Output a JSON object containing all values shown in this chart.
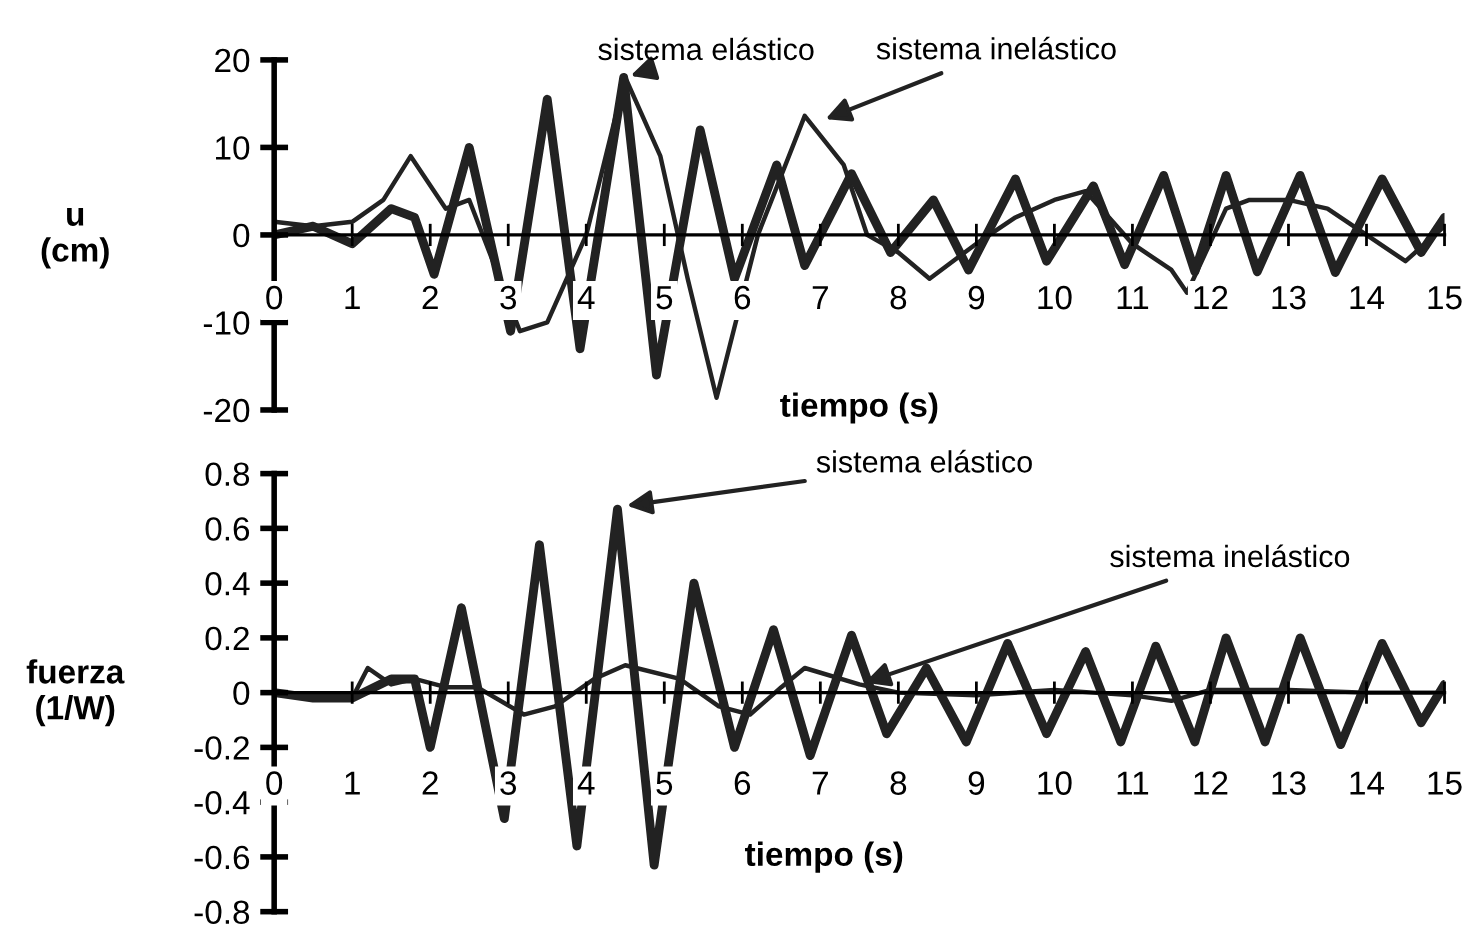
{
  "chart_data": [
    {
      "type": "line",
      "ylabel": "u\n(cm)",
      "xlabel": "tiempo (s)",
      "xlim": [
        0,
        15
      ],
      "xticks": [
        0,
        1,
        2,
        3,
        4,
        5,
        6,
        7,
        8,
        9,
        10,
        11,
        12,
        13,
        14,
        15
      ],
      "ylim": [
        -20,
        20
      ],
      "yticks": [
        -20,
        -10,
        0,
        10,
        20
      ],
      "grid": false,
      "legend": false,
      "marker": "none",
      "line_style": "solid",
      "annotations": [
        {
          "text": "sistema elástico",
          "x": 4.5,
          "y": 18
        },
        {
          "text": "sistema inelástico",
          "x": 7,
          "y": 13
        }
      ],
      "series": [
        {
          "color": "#222222",
          "x": [
            0,
            0.5,
            1,
            1.5,
            1.8,
            2.05,
            2.5,
            3.03,
            3.5,
            3.92,
            4.48,
            4.9,
            5.46,
            5.9,
            6.44,
            6.8,
            7.4,
            7.9,
            8.45,
            8.9,
            9.5,
            9.9,
            10.5,
            10.9,
            11.4,
            11.8,
            12.2,
            12.6,
            13.15,
            13.6,
            14.2,
            14.7,
            15
          ],
          "values": [
            0,
            1,
            -1,
            3,
            2,
            -4.5,
            10,
            -11,
            15.5,
            -13,
            18,
            -16,
            12,
            -5,
            8,
            -3.5,
            7,
            -2,
            4,
            -4,
            6.4,
            -3,
            5.6,
            -3.4,
            6.8,
            -4.2,
            6.8,
            -4.2,
            6.8,
            -4.3,
            6.4,
            -2,
            2
          ]
        },
        {
          "color": "#222222",
          "x": [
            0,
            0.5,
            1,
            1.4,
            1.75,
            2.2,
            2.5,
            3.15,
            3.5,
            4.0,
            4.5,
            4.7,
            4.95,
            5.3,
            5.67,
            6.2,
            6.8,
            7.3,
            7.6,
            8,
            8.4,
            9,
            9.5,
            10,
            10.4,
            11,
            11.5,
            11.7,
            12.2,
            12.5,
            13,
            13.5,
            14,
            14.5,
            15
          ],
          "values": [
            1.5,
            1,
            1.5,
            4,
            9,
            3,
            4,
            -11,
            -10,
            0,
            18,
            14,
            9,
            -5,
            -18.6,
            0,
            13.6,
            8,
            0,
            -2,
            -5,
            -1,
            2,
            4,
            5,
            -1,
            -4,
            -6.6,
            3,
            4,
            4,
            3,
            0,
            -3,
            1
          ]
        }
      ]
    },
    {
      "type": "line",
      "ylabel": "fuerza\n(1/W)",
      "xlabel": "tiempo (s)",
      "xlim": [
        0,
        15
      ],
      "xticks": [
        0,
        1,
        2,
        3,
        4,
        5,
        6,
        7,
        8,
        9,
        10,
        11,
        12,
        13,
        14,
        15
      ],
      "ylim": [
        -0.8,
        0.8
      ],
      "yticks": [
        -0.8,
        -0.6,
        -0.4,
        -0.2,
        0,
        0.2,
        0.4,
        0.6,
        0.8
      ],
      "grid": false,
      "legend": false,
      "marker": "none",
      "line_style": "solid",
      "annotations": [
        {
          "text": "sistema elástico",
          "x": 4.45,
          "y": 0.68
        },
        {
          "text": "sistema inelástico",
          "x": 7.5,
          "y": 0.03
        }
      ],
      "series": [
        {
          "color": "#222222",
          "x": [
            0,
            0.5,
            1,
            1.5,
            1.8,
            2.0,
            2.4,
            2.95,
            3.4,
            3.88,
            4.4,
            4.87,
            5.38,
            5.9,
            6.4,
            6.87,
            7.4,
            7.85,
            8.36,
            8.87,
            9.4,
            9.9,
            10.4,
            10.85,
            11.3,
            11.8,
            12.2,
            12.7,
            13.15,
            13.67,
            14.2,
            14.7,
            15
          ],
          "values": [
            0,
            -0.02,
            -0.02,
            0.05,
            0.05,
            -0.2,
            0.31,
            -0.46,
            0.54,
            -0.56,
            0.67,
            -0.63,
            0.4,
            -0.2,
            0.23,
            -0.23,
            0.21,
            -0.15,
            0.09,
            -0.18,
            0.18,
            -0.15,
            0.15,
            -0.18,
            0.17,
            -0.18,
            0.2,
            -0.18,
            0.2,
            -0.19,
            0.18,
            -0.11,
            0.03
          ]
        },
        {
          "color": "#222222",
          "x": [
            0,
            0.5,
            1,
            1.2,
            1.5,
            1.8,
            2.2,
            2.6,
            3.2,
            3.6,
            4.1,
            4.5,
            5.2,
            5.7,
            6.1,
            6.5,
            6.8,
            7.5,
            8,
            9,
            10,
            11,
            11.5,
            12,
            13,
            14,
            15
          ],
          "values": [
            0,
            -0.02,
            -0.02,
            0.09,
            0.03,
            0.05,
            0.02,
            0.02,
            -0.08,
            -0.05,
            0.05,
            0.1,
            0.05,
            -0.05,
            -0.08,
            0.02,
            0.09,
            0.03,
            0,
            -0.01,
            0.01,
            -0.01,
            -0.03,
            0.01,
            0.01,
            0,
            0
          ]
        }
      ]
    }
  ]
}
